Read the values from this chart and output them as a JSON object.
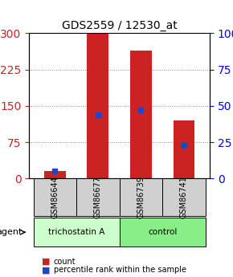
{
  "title": "GDS2559 / 12530_at",
  "categories": [
    "GSM86644",
    "GSM86677",
    "GSM86739",
    "GSM86741"
  ],
  "counts": [
    15,
    300,
    265,
    120
  ],
  "percentile_ranks": [
    5,
    44,
    47,
    23
  ],
  "bar_color": "#cc2222",
  "marker_color": "#2244cc",
  "ylim_left": [
    0,
    300
  ],
  "ylim_right": [
    0,
    100
  ],
  "yticks_left": [
    0,
    75,
    150,
    225,
    300
  ],
  "yticks_right": [
    0,
    25,
    50,
    75,
    100
  ],
  "groups": [
    {
      "label": "trichostatin A",
      "indices": [
        0,
        1
      ],
      "color": "#ccffcc"
    },
    {
      "label": "control",
      "indices": [
        2,
        3
      ],
      "color": "#88ee88"
    }
  ],
  "agent_label": "agent",
  "legend_count_label": "count",
  "legend_pct_label": "percentile rank within the sample",
  "grid_color": "#888888",
  "background_color": "#ffffff",
  "plot_bg": "#ffffff",
  "bar_width": 0.5
}
